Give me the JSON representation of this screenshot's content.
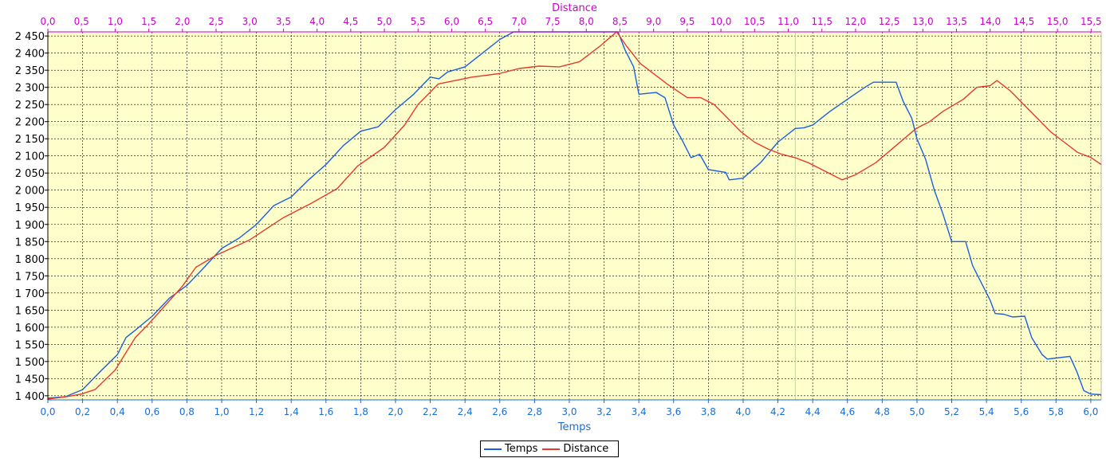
{
  "chart_data": {
    "type": "line",
    "top_axis_label": "Distance",
    "bottom_axis_label": "Temps",
    "top_ticks": [
      "0,0",
      "0,5",
      "1,0",
      "1,5",
      "2,0",
      "2,5",
      "3,0",
      "3,5",
      "4,0",
      "4,5",
      "5,0",
      "5,5",
      "6,0",
      "6,5",
      "7,0",
      "7,5",
      "8,0",
      "8,5",
      "9,0",
      "9,5",
      "10,0",
      "10,5",
      "11,0",
      "11,5",
      "12,0",
      "12,5",
      "13,0",
      "13,5",
      "14,0",
      "14,5",
      "15,0",
      "15,5"
    ],
    "bottom_ticks": [
      "0,0",
      "0,2",
      "0,4",
      "0,6",
      "0,8",
      "1,0",
      "1,2",
      "1,4",
      "1,6",
      "1,8",
      "2,0",
      "2,2",
      "2,4",
      "2,6",
      "2,8",
      "3,0",
      "3,2",
      "3,4",
      "3,6",
      "3,8",
      "4,0",
      "4,2",
      "4,4",
      "4,6",
      "4,8",
      "5,0",
      "5,2",
      "5,4",
      "5,6",
      "5,8",
      "6,0"
    ],
    "y_ticks": [
      "1 400",
      "1 450",
      "1 500",
      "1 550",
      "1 600",
      "1 650",
      "1 700",
      "1 750",
      "1 800",
      "1 850",
      "1 900",
      "1 950",
      "2 000",
      "2 050",
      "2 100",
      "2 150",
      "2 200",
      "2 250",
      "2 300",
      "2 350",
      "2 400",
      "2 450"
    ],
    "top_range": [
      0,
      15.65
    ],
    "bottom_range": [
      0,
      6.06
    ],
    "ylim": [
      1388,
      2462
    ],
    "grid": true,
    "legend_position": "bottom-center",
    "colors": {
      "plot_background": "#ffffcc",
      "grid": "#000000",
      "top_axis": "#cc00cc",
      "bottom_axis": "#1a6cd8",
      "y_axis": "#000000",
      "marker_line": "#99ee99"
    },
    "vertical_marker_x": 4.3,
    "horizontal_marker_y": 2190,
    "series": [
      {
        "name": "Temps",
        "axis": "bottom",
        "color": "#1a5fe0",
        "points": [
          [
            0,
            1393
          ],
          [
            0.1,
            1397
          ],
          [
            0.2,
            1418
          ],
          [
            0.3,
            1470
          ],
          [
            0.4,
            1520
          ],
          [
            0.45,
            1570
          ],
          [
            0.5,
            1590
          ],
          [
            0.6,
            1632
          ],
          [
            0.7,
            1685
          ],
          [
            0.8,
            1722
          ],
          [
            0.9,
            1775
          ],
          [
            1.0,
            1830
          ],
          [
            1.1,
            1860
          ],
          [
            1.2,
            1900
          ],
          [
            1.3,
            1955
          ],
          [
            1.4,
            1980
          ],
          [
            1.5,
            2030
          ],
          [
            1.6,
            2075
          ],
          [
            1.7,
            2130
          ],
          [
            1.8,
            2172
          ],
          [
            1.9,
            2185
          ],
          [
            2.0,
            2235
          ],
          [
            2.1,
            2278
          ],
          [
            2.2,
            2330
          ],
          [
            2.25,
            2325
          ],
          [
            2.3,
            2345
          ],
          [
            2.4,
            2360
          ],
          [
            2.5,
            2400
          ],
          [
            2.6,
            2440
          ],
          [
            2.68,
            2462
          ],
          [
            3.28,
            2462
          ],
          [
            3.32,
            2410
          ],
          [
            3.37,
            2360
          ],
          [
            3.4,
            2280
          ],
          [
            3.5,
            2285
          ],
          [
            3.55,
            2270
          ],
          [
            3.6,
            2190
          ],
          [
            3.65,
            2145
          ],
          [
            3.7,
            2095
          ],
          [
            3.75,
            2105
          ],
          [
            3.8,
            2060
          ],
          [
            3.9,
            2052
          ],
          [
            3.92,
            2030
          ],
          [
            4.0,
            2035
          ],
          [
            4.1,
            2080
          ],
          [
            4.2,
            2140
          ],
          [
            4.3,
            2180
          ],
          [
            4.35,
            2182
          ],
          [
            4.4,
            2190
          ],
          [
            4.5,
            2230
          ],
          [
            4.6,
            2265
          ],
          [
            4.7,
            2300
          ],
          [
            4.75,
            2315
          ],
          [
            4.88,
            2315
          ],
          [
            4.92,
            2260
          ],
          [
            4.97,
            2210
          ],
          [
            5.0,
            2150
          ],
          [
            5.05,
            2090
          ],
          [
            5.1,
            2000
          ],
          [
            5.15,
            1930
          ],
          [
            5.2,
            1850
          ],
          [
            5.28,
            1850
          ],
          [
            5.32,
            1780
          ],
          [
            5.37,
            1730
          ],
          [
            5.42,
            1680
          ],
          [
            5.45,
            1640
          ],
          [
            5.5,
            1638
          ],
          [
            5.55,
            1630
          ],
          [
            5.62,
            1632
          ],
          [
            5.66,
            1570
          ],
          [
            5.72,
            1520
          ],
          [
            5.75,
            1507
          ],
          [
            5.8,
            1510
          ],
          [
            5.88,
            1515
          ],
          [
            5.92,
            1470
          ],
          [
            5.96,
            1415
          ],
          [
            6.0,
            1405
          ],
          [
            6.06,
            1403
          ]
        ]
      },
      {
        "name": "Distance",
        "axis": "top",
        "color": "#e8392f",
        "points": [
          [
            0,
            1390
          ],
          [
            0.3,
            1398
          ],
          [
            0.5,
            1405
          ],
          [
            0.7,
            1418
          ],
          [
            1.0,
            1475
          ],
          [
            1.3,
            1570
          ],
          [
            1.5,
            1610
          ],
          [
            2.0,
            1720
          ],
          [
            2.2,
            1775
          ],
          [
            2.5,
            1810
          ],
          [
            3.0,
            1855
          ],
          [
            3.5,
            1920
          ],
          [
            3.9,
            1960
          ],
          [
            4.3,
            2005
          ],
          [
            4.6,
            2070
          ],
          [
            5.0,
            2125
          ],
          [
            5.3,
            2190
          ],
          [
            5.5,
            2250
          ],
          [
            5.8,
            2310
          ],
          [
            6.3,
            2330
          ],
          [
            6.7,
            2340
          ],
          [
            7.0,
            2355
          ],
          [
            7.3,
            2362
          ],
          [
            7.6,
            2360
          ],
          [
            7.9,
            2375
          ],
          [
            8.2,
            2420
          ],
          [
            8.45,
            2462
          ],
          [
            8.6,
            2420
          ],
          [
            8.8,
            2370
          ],
          [
            9.2,
            2310
          ],
          [
            9.5,
            2270
          ],
          [
            9.7,
            2270
          ],
          [
            9.9,
            2250
          ],
          [
            10.1,
            2210
          ],
          [
            10.3,
            2170
          ],
          [
            10.5,
            2140
          ],
          [
            10.7,
            2120
          ],
          [
            10.9,
            2105
          ],
          [
            11.1,
            2095
          ],
          [
            11.3,
            2080
          ],
          [
            11.5,
            2060
          ],
          [
            11.7,
            2040
          ],
          [
            11.8,
            2030
          ],
          [
            12.0,
            2045
          ],
          [
            12.3,
            2080
          ],
          [
            12.6,
            2130
          ],
          [
            12.9,
            2180
          ],
          [
            13.1,
            2200
          ],
          [
            13.3,
            2230
          ],
          [
            13.6,
            2265
          ],
          [
            13.8,
            2300
          ],
          [
            14.0,
            2305
          ],
          [
            14.1,
            2320
          ],
          [
            14.3,
            2290
          ],
          [
            14.5,
            2250
          ],
          [
            14.7,
            2210
          ],
          [
            14.9,
            2170
          ],
          [
            15.1,
            2140
          ],
          [
            15.3,
            2110
          ],
          [
            15.5,
            2095
          ],
          [
            15.65,
            2075
          ]
        ]
      }
    ]
  }
}
